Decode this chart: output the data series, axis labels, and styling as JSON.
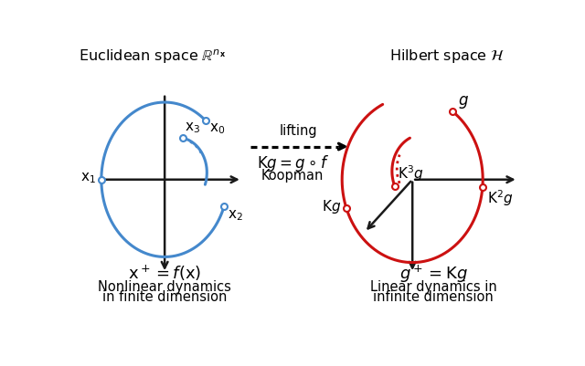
{
  "left_title": "Euclidean space $\\mathbb{R}^{n_{\\mathbf{x}}}$",
  "right_title": "Hilbert space $\\mathcal{H}$",
  "left_bottom_eq": "$\\mathrm{x}^+ = f(\\mathrm{x})$",
  "left_bottom_label1": "Nonlinear dynamics",
  "left_bottom_label2": "in finite dimension",
  "right_bottom_eq": "$g^+ = \\mathrm{K}g$",
  "right_bottom_label1": "Linear dynamics in",
  "right_bottom_label2": "infinite dimension",
  "lifting_text": "lifting",
  "koopman_eq": "$\\mathrm{K}g = g \\circ f$",
  "koopman_label": "Koopman",
  "blue_color": "#4488CC",
  "red_color": "#CC1111",
  "arrow_color": "#1a1a1a",
  "bg_color": "#FFFFFF"
}
